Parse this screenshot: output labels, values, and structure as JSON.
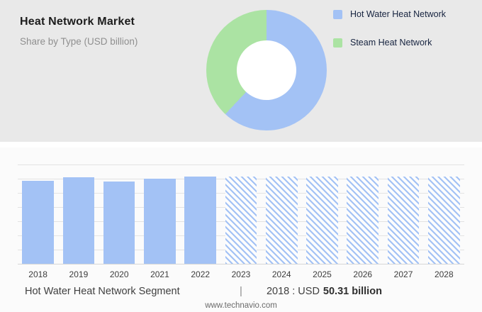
{
  "header": {
    "title": "Heat Network Market",
    "subtitle": "Share by Type (USD billion)"
  },
  "colors": {
    "hot_water_blue": "#a3c2f5",
    "steam_green": "#abe3a3",
    "top_panel_bg": "#e9e9e9",
    "bottom_panel_bg": "#fbfbfb"
  },
  "legend": {
    "items": [
      {
        "label": "Hot Water Heat Network",
        "color": "#a3c2f5"
      },
      {
        "label": "Steam Heat Network",
        "color": "#abe3a3"
      }
    ]
  },
  "chart_data": [
    {
      "type": "pie",
      "title": "Heat Network Market — Share by Type (USD billion)",
      "labels": [
        "Hot Water Heat Network",
        "Steam Heat Network"
      ],
      "values": [
        62,
        38
      ],
      "colors": [
        "#a3c2f5",
        "#abe3a3"
      ],
      "donut": true,
      "legend_position": "right"
    },
    {
      "type": "bar",
      "categories": [
        "2018",
        "2019",
        "2020",
        "2021",
        "2022",
        "2023",
        "2024",
        "2025",
        "2026",
        "2027",
        "2028"
      ],
      "values": [
        50.31,
        52.3,
        49.7,
        51.4,
        52.7,
        52.7,
        52.7,
        52.7,
        52.7,
        52.7,
        52.7
      ],
      "forecast_categories": [
        "2023",
        "2024",
        "2025",
        "2026",
        "2027",
        "2028"
      ],
      "bar_color": "#a3c2f5",
      "hatch_gap_color": "#fdfdfd",
      "ylim": [
        0,
        60
      ],
      "grid": true,
      "xlabel": "",
      "ylabel": ""
    }
  ],
  "footnote": {
    "segment": "Hot Water Heat Network Segment",
    "separator": "|",
    "value_prefix": "2018 : USD",
    "value_bold": "50.31 billion"
  },
  "footer": "www.technavio.com"
}
